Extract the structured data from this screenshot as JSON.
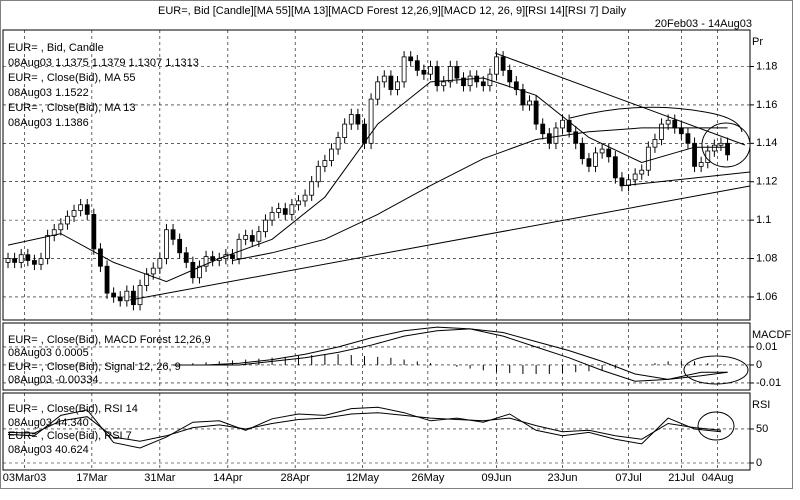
{
  "chart_data": [
    {
      "type": "candlestick",
      "title": "EUR=, Bid [Candle][MA 55][MA 13][MACD Forest 12,26,9][MACD 12, 26, 9][RSI 14][RSI  7] Daily",
      "date_range": "20Feb03 - 14Aug03",
      "axis_label": "Pr",
      "legend": [
        "EUR= , Bid, Candle",
        "08Aug03 1.1375 1.1379 1.1307 1.1313",
        "EUR= , Close(Bid), MA 55",
        "08Aug03 1.1522",
        "EUR= , Close(Bid), MA 13",
        "08Aug03 1.1386"
      ],
      "open": [
        1.078,
        1.08,
        1.078,
        1.082,
        1.079,
        1.077,
        1.08,
        1.092,
        1.095,
        1.098,
        1.102,
        1.105,
        1.108,
        1.103,
        1.085,
        1.076,
        1.062,
        1.06,
        1.058,
        1.063,
        1.056,
        1.066,
        1.072,
        1.075,
        1.08,
        1.095,
        1.09,
        1.083,
        1.078,
        1.07,
        1.076,
        1.081,
        1.079,
        1.08,
        1.082,
        1.08,
        1.09,
        1.092,
        1.089,
        1.094,
        1.1,
        1.104,
        1.106,
        1.103,
        1.108,
        1.11,
        1.113,
        1.12,
        1.128,
        1.131,
        1.137,
        1.143,
        1.15,
        1.155,
        1.15,
        1.14,
        1.163,
        1.172,
        1.175,
        1.168,
        1.172,
        1.185,
        1.183,
        1.178,
        1.176,
        1.18,
        1.17,
        1.172,
        1.18,
        1.174,
        1.17,
        1.175,
        1.172,
        1.17,
        1.176,
        1.185,
        1.178,
        1.172,
        1.168,
        1.16,
        1.162,
        1.15,
        1.145,
        1.14,
        1.148,
        1.152,
        1.146,
        1.14,
        1.132,
        1.128,
        1.135,
        1.137,
        1.133,
        1.122,
        1.118,
        1.121,
        1.124,
        1.126,
        1.138,
        1.142,
        1.15,
        1.152,
        1.148,
        1.145,
        1.14,
        1.128,
        1.13,
        1.136,
        1.139,
        1.14
      ],
      "high": [
        1.083,
        1.083,
        1.085,
        1.085,
        1.082,
        1.083,
        1.095,
        1.098,
        1.101,
        1.105,
        1.108,
        1.111,
        1.111,
        1.106,
        1.088,
        1.079,
        1.065,
        1.063,
        1.066,
        1.066,
        1.069,
        1.075,
        1.078,
        1.083,
        1.098,
        1.098,
        1.093,
        1.086,
        1.081,
        1.079,
        1.084,
        1.084,
        1.083,
        1.085,
        1.085,
        1.093,
        1.095,
        1.095,
        1.097,
        1.103,
        1.107,
        1.109,
        1.109,
        1.111,
        1.113,
        1.116,
        1.123,
        1.131,
        1.134,
        1.14,
        1.146,
        1.153,
        1.158,
        1.158,
        1.153,
        1.166,
        1.175,
        1.178,
        1.178,
        1.175,
        1.188,
        1.188,
        1.186,
        1.181,
        1.183,
        1.183,
        1.175,
        1.183,
        1.183,
        1.177,
        1.178,
        1.178,
        1.175,
        1.179,
        1.188,
        1.188,
        1.181,
        1.175,
        1.171,
        1.165,
        1.165,
        1.153,
        1.148,
        1.151,
        1.155,
        1.155,
        1.149,
        1.143,
        1.135,
        1.138,
        1.14,
        1.14,
        1.136,
        1.125,
        1.124,
        1.127,
        1.129,
        1.141,
        1.145,
        1.153,
        1.155,
        1.155,
        1.151,
        1.148,
        1.143,
        1.133,
        1.139,
        1.142,
        1.143,
        1.143
      ],
      "low": [
        1.075,
        1.075,
        1.075,
        1.076,
        1.074,
        1.074,
        1.077,
        1.089,
        1.092,
        1.095,
        1.099,
        1.102,
        1.1,
        1.082,
        1.073,
        1.059,
        1.057,
        1.055,
        1.055,
        1.053,
        1.053,
        1.063,
        1.069,
        1.072,
        1.077,
        1.087,
        1.08,
        1.075,
        1.067,
        1.067,
        1.073,
        1.076,
        1.076,
        1.077,
        1.077,
        1.077,
        1.087,
        1.086,
        1.086,
        1.091,
        1.097,
        1.101,
        1.1,
        1.1,
        1.105,
        1.107,
        1.11,
        1.117,
        1.125,
        1.128,
        1.134,
        1.14,
        1.147,
        1.147,
        1.137,
        1.137,
        1.16,
        1.169,
        1.165,
        1.165,
        1.169,
        1.18,
        1.175,
        1.173,
        1.173,
        1.167,
        1.167,
        1.169,
        1.171,
        1.167,
        1.167,
        1.169,
        1.167,
        1.167,
        1.173,
        1.175,
        1.169,
        1.165,
        1.157,
        1.157,
        1.147,
        1.142,
        1.137,
        1.137,
        1.145,
        1.143,
        1.137,
        1.129,
        1.125,
        1.125,
        1.132,
        1.13,
        1.119,
        1.115,
        1.115,
        1.118,
        1.121,
        1.123,
        1.135,
        1.139,
        1.147,
        1.145,
        1.142,
        1.137,
        1.125,
        1.125,
        1.127,
        1.133,
        1.136,
        1.131
      ],
      "close": [
        1.08,
        1.078,
        1.082,
        1.079,
        1.077,
        1.08,
        1.092,
        1.095,
        1.098,
        1.102,
        1.105,
        1.108,
        1.103,
        1.085,
        1.076,
        1.062,
        1.06,
        1.058,
        1.063,
        1.056,
        1.066,
        1.072,
        1.075,
        1.08,
        1.095,
        1.09,
        1.083,
        1.078,
        1.07,
        1.076,
        1.081,
        1.079,
        1.08,
        1.082,
        1.08,
        1.09,
        1.092,
        1.089,
        1.094,
        1.1,
        1.104,
        1.106,
        1.103,
        1.108,
        1.11,
        1.113,
        1.12,
        1.128,
        1.131,
        1.137,
        1.143,
        1.15,
        1.155,
        1.15,
        1.14,
        1.163,
        1.172,
        1.175,
        1.168,
        1.172,
        1.185,
        1.183,
        1.178,
        1.176,
        1.18,
        1.17,
        1.172,
        1.18,
        1.174,
        1.17,
        1.175,
        1.172,
        1.17,
        1.176,
        1.185,
        1.178,
        1.172,
        1.168,
        1.16,
        1.162,
        1.15,
        1.145,
        1.14,
        1.148,
        1.152,
        1.146,
        1.14,
        1.132,
        1.128,
        1.135,
        1.137,
        1.133,
        1.122,
        1.118,
        1.121,
        1.124,
        1.126,
        1.138,
        1.142,
        1.15,
        1.152,
        1.148,
        1.145,
        1.14,
        1.128,
        1.13,
        1.136,
        1.139,
        1.14,
        1.134
      ],
      "overlays": [
        {
          "color": "#000000",
          "x": [
            34,
            40,
            48,
            56,
            64,
            72,
            80,
            88,
            96,
            104,
            109
          ],
          "values": [
            1.079,
            1.083,
            1.09,
            1.103,
            1.118,
            1.132,
            1.142,
            1.146,
            1.148,
            1.148,
            1.148
          ]
        },
        {
          "color": "#000000",
          "x": [
            0,
            8,
            16,
            24,
            32,
            40,
            48,
            56,
            64,
            72,
            80,
            88,
            96,
            104,
            109
          ],
          "values": [
            1.087,
            1.093,
            1.078,
            1.068,
            1.08,
            1.09,
            1.112,
            1.15,
            1.172,
            1.174,
            1.165,
            1.143,
            1.13,
            1.138,
            1.138
          ]
        }
      ],
      "xlim": [
        -0.76,
        112.4
      ],
      "ylim": [
        1.048,
        1.199
      ],
      "yticks": [
        1.06,
        1.08,
        1.1,
        1.12,
        1.14,
        1.16,
        1.18
      ],
      "grid": true
    },
    {
      "type": "macd",
      "axis_label": "MACDF",
      "legend": [
        "EUR= , Close(Bid), MACD Forest 12,26,9",
        "08Aug03 0.0005",
        "EUR= , Close(Bid), Signal 12, 26, 9",
        "08Aug03 -0.00334"
      ],
      "bars": {
        "color": "#000000",
        "x": [
          26,
          28,
          30,
          32,
          34,
          36,
          38,
          40,
          42,
          44,
          46,
          48,
          50,
          52,
          54,
          56,
          58,
          60,
          62,
          64,
          66,
          68,
          70,
          72,
          74,
          76,
          78,
          80,
          82,
          84,
          86,
          88,
          90,
          92,
          94,
          96,
          98,
          100,
          102,
          104,
          106,
          108
        ],
        "values": [
          0.0005,
          0.001,
          0.0015,
          0.002,
          0.0025,
          0.003,
          0.0035,
          0.004,
          0.0045,
          0.005,
          0.0055,
          0.006,
          0.006,
          0.0055,
          0.005,
          0.0045,
          0.004,
          0.003,
          0.002,
          0.001,
          0,
          -0.001,
          -0.002,
          -0.003,
          -0.004,
          -0.0045,
          -0.005,
          -0.005,
          -0.005,
          -0.0045,
          -0.004,
          -0.0035,
          -0.003,
          -0.002,
          -0.001,
          0,
          0.001,
          0.002,
          0.002,
          0.002,
          0.001,
          0.0005
        ]
      },
      "overlays": [
        {
          "color": "#000000",
          "x": [
            25,
            30,
            35,
            40,
            45,
            50,
            55,
            60,
            65,
            70,
            75,
            80,
            85,
            90,
            95,
            100,
            105,
            109
          ],
          "values": [
            0,
            0,
            0.001,
            0.003,
            0.006,
            0.01,
            0.015,
            0.019,
            0.021,
            0.02,
            0.016,
            0.01,
            0.004,
            -0.003,
            -0.009,
            -0.008,
            -0.004,
            -0.004
          ]
        },
        {
          "color": "#000000",
          "x": [
            25,
            30,
            35,
            40,
            45,
            50,
            55,
            60,
            65,
            70,
            75,
            80,
            85,
            90,
            95,
            100,
            105,
            109
          ],
          "values": [
            0,
            0,
            0,
            0.002,
            0.004,
            0.007,
            0.011,
            0.016,
            0.019,
            0.02,
            0.018,
            0.013,
            0.008,
            0.002,
            -0.005,
            -0.008,
            -0.006,
            -0.004
          ]
        }
      ],
      "xlim": [
        -0.76,
        112.4
      ],
      "ylim": [
        -0.0139,
        0.0233
      ],
      "yticks": [
        -0.01,
        0,
        0.01
      ],
      "grid": true
    },
    {
      "type": "line",
      "axis_label": "RSI",
      "legend": [
        "EUR= , Close(Bid), RSI 14",
        "08Aug03 44.340",
        "EUR= , Close(Bid), RSI  7",
        "08Aug03 40.624"
      ],
      "overlays": [
        {
          "color": "#000000",
          "x": [
            0,
            4,
            8,
            12,
            16,
            20,
            24,
            28,
            32,
            36,
            40,
            44,
            48,
            52,
            56,
            60,
            64,
            68,
            72,
            76,
            80,
            84,
            88,
            92,
            96,
            100,
            104,
            108
          ],
          "values": [
            45,
            44,
            62,
            68,
            38,
            32,
            40,
            52,
            56,
            50,
            58,
            64,
            66,
            72,
            74,
            70,
            66,
            64,
            62,
            66,
            55,
            46,
            48,
            40,
            35,
            58,
            52,
            48
          ]
        },
        {
          "color": "#000000",
          "x": [
            0,
            4,
            8,
            12,
            16,
            20,
            24,
            28,
            32,
            36,
            40,
            44,
            48,
            52,
            56,
            60,
            64,
            68,
            72,
            76,
            80,
            84,
            88,
            92,
            96,
            100,
            104,
            108
          ],
          "values": [
            42,
            40,
            70,
            78,
            30,
            22,
            38,
            60,
            62,
            48,
            65,
            72,
            70,
            80,
            82,
            74,
            62,
            66,
            60,
            72,
            48,
            40,
            45,
            35,
            28,
            66,
            50,
            46
          ]
        }
      ],
      "xlim": [
        -0.76,
        112.4
      ],
      "ylim": [
        -10.3,
        102.9
      ],
      "yticks": [
        0,
        50
      ],
      "grid": true,
      "xticks": [
        {
          "value": 2.5,
          "label": "03Mar03"
        },
        {
          "value": 12.7,
          "label": "17Mar"
        },
        {
          "value": 23,
          "label": "31Mar"
        },
        {
          "value": 33.3,
          "label": "14Apr"
        },
        {
          "value": 43.5,
          "label": "28Apr"
        },
        {
          "value": 53.7,
          "label": "12May"
        },
        {
          "value": 63.6,
          "label": "26May"
        },
        {
          "value": 74,
          "label": "09Jun"
        },
        {
          "value": 84,
          "label": "23Jun"
        },
        {
          "value": 94,
          "label": "07Jul"
        },
        {
          "value": 102,
          "label": "21Jul"
        },
        {
          "value": 107.5,
          "label": "04Aug"
        }
      ]
    }
  ]
}
